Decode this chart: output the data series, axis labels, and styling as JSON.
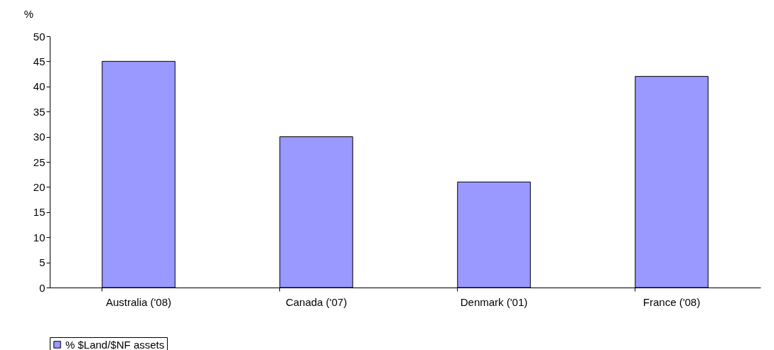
{
  "chart_data": {
    "type": "bar",
    "ylabel": "%",
    "categories": [
      "Australia ('08)",
      "Canada ('07)",
      "Denmark ('01)",
      "France ('08)"
    ],
    "series": [
      {
        "name": "% $Land/$NF assets",
        "color": "#9999ff",
        "values": [
          45,
          30,
          21,
          42
        ]
      }
    ],
    "ylim": [
      0,
      50
    ],
    "yticks": [
      0,
      5,
      10,
      15,
      20,
      25,
      30,
      35,
      40,
      45,
      50
    ],
    "legend": "bottom"
  }
}
